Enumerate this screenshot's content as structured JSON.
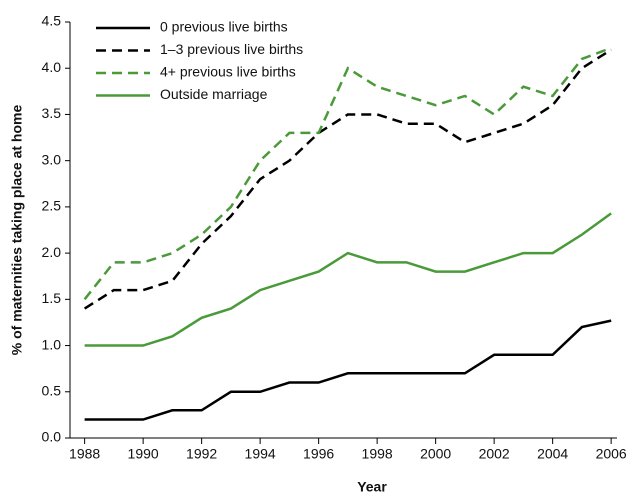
{
  "chart_data": {
    "type": "line",
    "xlabel": "Year",
    "ylabel": "% of maternities taking place at home",
    "x": [
      1988,
      1989,
      1990,
      1991,
      1992,
      1993,
      1994,
      1995,
      1996,
      1997,
      1998,
      1999,
      2000,
      2001,
      2002,
      2003,
      2004,
      2005,
      2006
    ],
    "series": [
      {
        "name": "0 previous live births",
        "color": "#000000",
        "dash": false,
        "values": [
          0.2,
          0.2,
          0.2,
          0.3,
          0.3,
          0.5,
          0.5,
          0.6,
          0.6,
          0.7,
          0.7,
          0.7,
          0.7,
          0.7,
          0.9,
          0.9,
          0.9,
          1.2,
          1.27
        ]
      },
      {
        "name": "1–3 previous live births",
        "color": "#000000",
        "dash": true,
        "values": [
          1.4,
          1.6,
          1.6,
          1.7,
          2.1,
          2.4,
          2.8,
          3.0,
          3.3,
          3.5,
          3.5,
          3.4,
          3.4,
          3.2,
          3.3,
          3.4,
          3.6,
          4.0,
          4.2
        ]
      },
      {
        "name": "4+ previous live births",
        "color": "#4a9a3a",
        "dash": true,
        "values": [
          1.5,
          1.9,
          1.9,
          2.0,
          2.2,
          2.5,
          3.0,
          3.3,
          3.3,
          4.0,
          3.8,
          3.7,
          3.6,
          3.7,
          3.5,
          3.8,
          3.7,
          4.1,
          4.22
        ]
      },
      {
        "name": "Outside marriage",
        "color": "#4a9a3a",
        "dash": false,
        "values": [
          1.0,
          1.0,
          1.0,
          1.1,
          1.3,
          1.4,
          1.6,
          1.7,
          1.8,
          2.0,
          1.9,
          1.9,
          1.8,
          1.8,
          1.9,
          2.0,
          2.0,
          2.2,
          2.43
        ]
      }
    ],
    "xlim": [
      1987.5,
      2006.2
    ],
    "xticks": [
      1988,
      1990,
      1992,
      1994,
      1996,
      1998,
      2000,
      2002,
      2004,
      2006
    ],
    "ylim": [
      0,
      4.5
    ],
    "yticks": [
      {
        "value": 0,
        "label": "0.0"
      },
      0.5,
      {
        "value": 1,
        "label": "1.0"
      },
      1.5,
      {
        "value": 2,
        "label": "2.0"
      },
      2.5,
      {
        "value": 3,
        "label": "3.0"
      },
      3.5,
      {
        "value": 4,
        "label": "4.0"
      },
      4.5
    ],
    "grid": false,
    "legend": "upper left"
  }
}
